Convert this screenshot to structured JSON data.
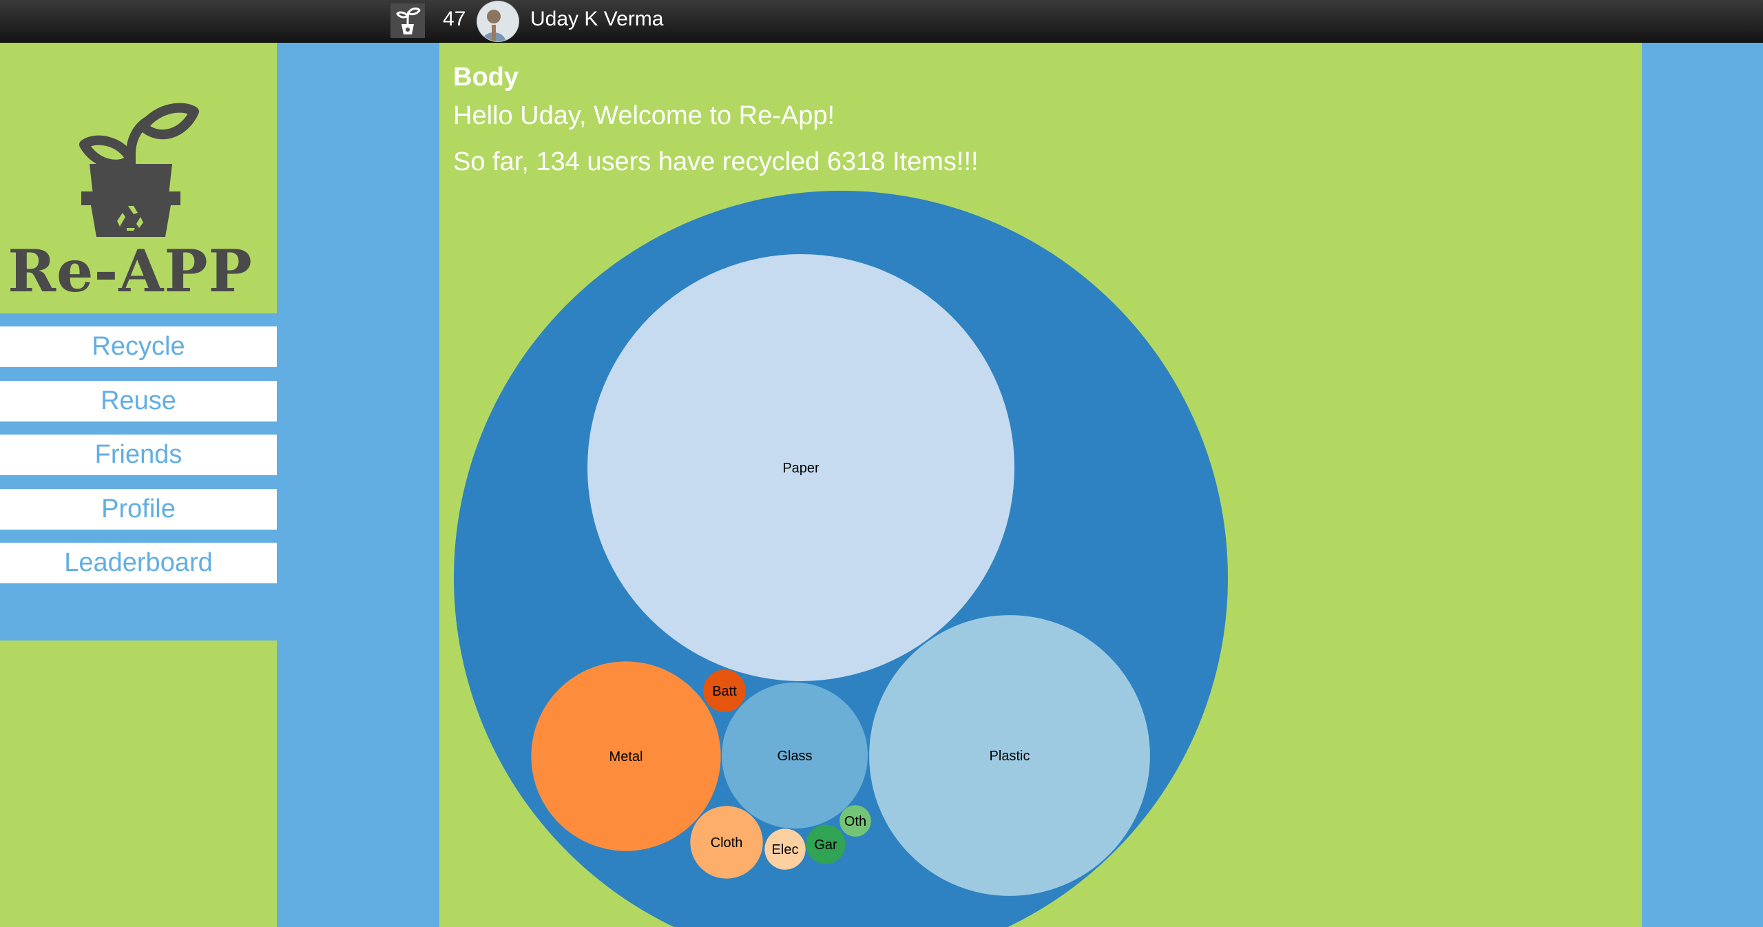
{
  "header": {
    "count": "47",
    "user_name": "Uday K Verma",
    "logo_icon": "sprout-recycle-icon",
    "avatar_icon": "user-avatar"
  },
  "sidebar": {
    "brand_name": "Re-APP",
    "brand_icon": "sprout-pot-recycle-icon",
    "nav": [
      {
        "label": "Recycle"
      },
      {
        "label": "Reuse"
      },
      {
        "label": "Friends"
      },
      {
        "label": "Profile"
      },
      {
        "label": "Leaderboard"
      }
    ]
  },
  "main": {
    "title": "Body",
    "greeting": "Hello Uday, Welcome to Re-App!",
    "summary": {
      "prefix": "So far, ",
      "users": "134",
      "middle": " users have recycled ",
      "items": "6318",
      "suffix": " Items!!!"
    }
  },
  "colors": {
    "topbar": "#1e1e1e",
    "sidebar_green": "#b2d862",
    "accent_blue": "#62aee2",
    "outer_bubble": "#2e82c1"
  },
  "chart_data": {
    "type": "bubble",
    "title": "",
    "series": [
      {
        "label": "Paper",
        "size": 142100,
        "color": "#c6dbef"
      },
      {
        "label": "Plastic",
        "size": 61500,
        "color": "#9ecae1"
      },
      {
        "label": "Metal",
        "size": 28000,
        "color": "#fd8d3c"
      },
      {
        "label": "Glass",
        "size": 16600,
        "color": "#6baed6"
      },
      {
        "label": "Cloth",
        "size": 4100,
        "color": "#fdae6b"
      },
      {
        "label": "Batt",
        "size": 1400,
        "color": "#e6550d"
      },
      {
        "label": "Gar",
        "size": 1200,
        "color": "#31a354"
      },
      {
        "label": "Elec",
        "size": 1300,
        "color": "#fdd0a2"
      },
      {
        "label": "Oth",
        "size": 770,
        "color": "#74c476"
      }
    ]
  }
}
